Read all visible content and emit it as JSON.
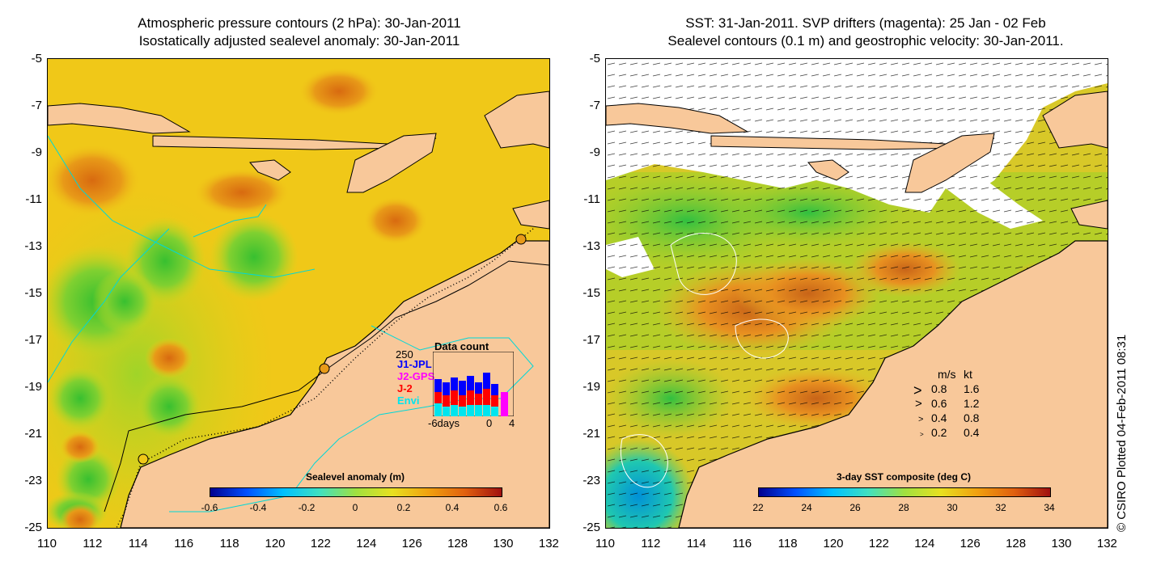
{
  "left_panel": {
    "title_line1": "Atmospheric pressure contours (2 hPa): 30-Jan-2011",
    "title_line2": "Isostatically adjusted sealevel anomaly: 30-Jan-2011",
    "y_ticks": [
      "-5",
      "-7",
      "-9",
      "-11",
      "-13",
      "-15",
      "-17",
      "-19",
      "-21",
      "-23",
      "-25"
    ],
    "x_ticks": [
      "110",
      "112",
      "114",
      "116",
      "118",
      "120",
      "122",
      "124",
      "126",
      "128",
      "130",
      "132"
    ],
    "colorbar_label": "Sealevel anomaly (m)",
    "colorbar_ticks": [
      "-0.6",
      "-0.4",
      "-0.2",
      "0",
      "0.2",
      "0.4",
      "0.6"
    ],
    "inset": {
      "title": "Data count",
      "ymax": "250",
      "series": [
        {
          "name": "J1-JPL",
          "color": "#0000ff"
        },
        {
          "name": "J2-GPS",
          "color": "#ff00ff"
        },
        {
          "name": "J-2",
          "color": "#ff0000"
        },
        {
          "name": "Envi",
          "color": "#00e5ee"
        }
      ],
      "x_label": "-6days",
      "x_tick_0": "0",
      "x_tick_4": "4"
    }
  },
  "right_panel": {
    "title_line1": "SST: 31-Jan-2011. SVP drifters (magenta): 25 Jan - 02 Feb",
    "title_line2": "Sealevel contours (0.1 m) and geostrophic velocity: 30-Jan-2011.",
    "y_ticks": [
      "-5",
      "-7",
      "-9",
      "-11",
      "-13",
      "-15",
      "-17",
      "-19",
      "-21",
      "-23",
      "-25"
    ],
    "x_ticks": [
      "110",
      "112",
      "114",
      "116",
      "118",
      "120",
      "122",
      "124",
      "126",
      "128",
      "130",
      "132"
    ],
    "colorbar_label": "3-day SST composite (deg C)",
    "colorbar_ticks": [
      "22",
      "24",
      "26",
      "28",
      "30",
      "32",
      "34"
    ],
    "velocity_legend": {
      "header_ms": "m/s",
      "header_kt": "kt",
      "rows": [
        {
          "ms": "0.8",
          "kt": "1.6"
        },
        {
          "ms": "0.6",
          "kt": "1.2"
        },
        {
          "ms": "0.4",
          "kt": "0.8"
        },
        {
          "ms": "0.2",
          "kt": "0.4"
        }
      ]
    }
  },
  "credit": "© CSIRO Plotted 04-Feb-2011 08:31",
  "colors": {
    "land": "#f8c89a",
    "sla_background": "#f0c818",
    "sst_background": "#e8b828",
    "coast_contour": "#00d8d8"
  }
}
